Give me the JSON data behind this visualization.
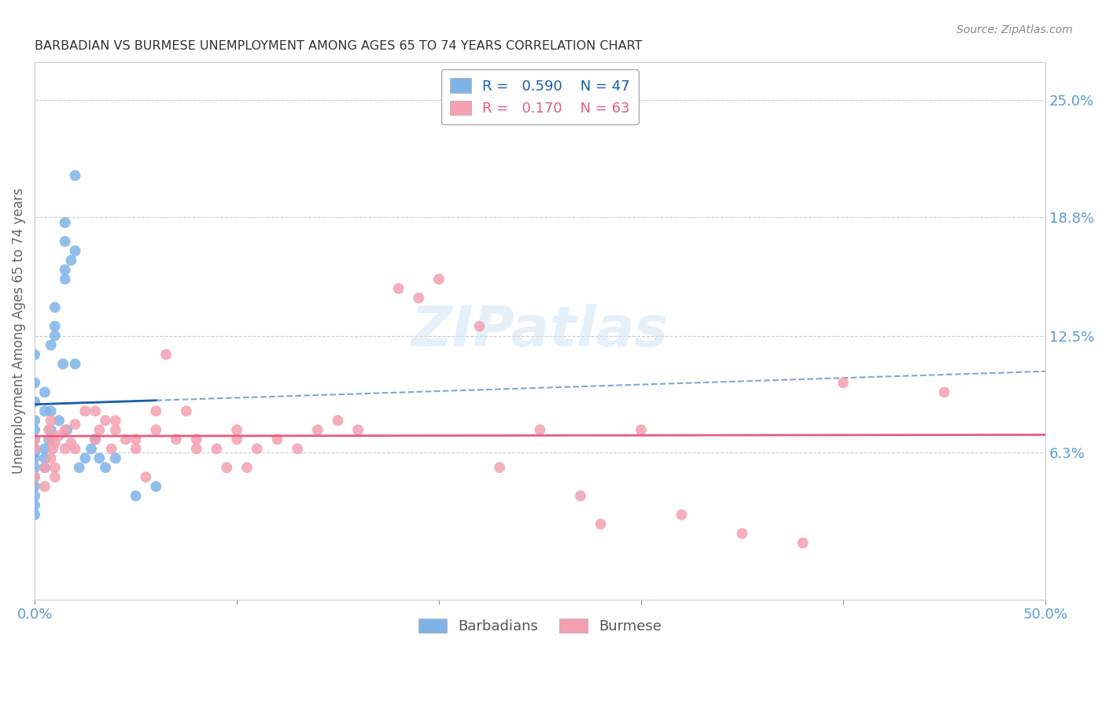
{
  "title": "BARBADIAN VS BURMESE UNEMPLOYMENT AMONG AGES 65 TO 74 YEARS CORRELATION CHART",
  "source": "Source: ZipAtlas.com",
  "ylabel": "Unemployment Among Ages 65 to 74 years",
  "xlim": [
    0.0,
    50.0
  ],
  "ylim": [
    -1.5,
    27.0
  ],
  "y_tick_labels_right": [
    "6.3%",
    "12.5%",
    "18.8%",
    "25.0%"
  ],
  "y_tick_vals_right": [
    6.3,
    12.5,
    18.8,
    25.0
  ],
  "background_color": "#ffffff",
  "grid_color": "#cccccc",
  "title_color": "#333333",
  "label_color": "#5b9bd5",
  "barbadian_color": "#7fb3e8",
  "burmese_color": "#f4a0b0",
  "barbadian_line_color": "#1a5fa8",
  "burmese_line_color": "#e85d7a",
  "R_barbadian": 0.59,
  "N_barbadian": 47,
  "R_burmese": 0.17,
  "N_burmese": 63,
  "barbadian_x": [
    0.0,
    0.0,
    0.0,
    0.0,
    0.0,
    0.0,
    0.0,
    0.0,
    0.0,
    0.0,
    0.0,
    0.0,
    0.0,
    0.0,
    0.0,
    0.5,
    0.5,
    0.5,
    0.5,
    0.5,
    0.7,
    0.8,
    0.8,
    0.8,
    1.0,
    1.0,
    1.0,
    1.2,
    1.4,
    1.5,
    1.5,
    1.5,
    1.5,
    1.6,
    1.8,
    2.0,
    2.0,
    2.0,
    2.2,
    2.5,
    2.8,
    3.0,
    3.2,
    3.5,
    4.0,
    5.0,
    6.0
  ],
  "barbadian_y": [
    3.0,
    3.5,
    4.0,
    4.5,
    5.0,
    5.5,
    6.0,
    6.3,
    6.5,
    7.0,
    7.5,
    8.0,
    9.0,
    10.0,
    11.5,
    5.5,
    6.0,
    6.5,
    8.5,
    9.5,
    7.0,
    7.5,
    8.5,
    12.0,
    12.5,
    13.0,
    14.0,
    8.0,
    11.0,
    15.5,
    16.0,
    17.5,
    18.5,
    7.5,
    16.5,
    11.0,
    17.0,
    21.0,
    5.5,
    6.0,
    6.5,
    7.0,
    6.0,
    5.5,
    6.0,
    4.0,
    4.5
  ],
  "burmese_x": [
    0.0,
    0.0,
    0.0,
    0.5,
    0.5,
    0.7,
    0.8,
    0.8,
    0.8,
    0.9,
    1.0,
    1.0,
    1.0,
    1.2,
    1.5,
    1.5,
    1.8,
    2.0,
    2.0,
    2.5,
    3.0,
    3.0,
    3.2,
    3.5,
    3.8,
    4.0,
    4.0,
    4.5,
    5.0,
    5.0,
    5.5,
    6.0,
    6.0,
    6.5,
    7.0,
    7.5,
    8.0,
    8.0,
    9.0,
    9.5,
    10.0,
    10.0,
    10.5,
    11.0,
    12.0,
    13.0,
    14.0,
    15.0,
    16.0,
    18.0,
    19.0,
    20.0,
    22.0,
    23.0,
    25.0,
    27.0,
    28.0,
    30.0,
    32.0,
    35.0,
    38.0,
    40.0,
    45.0
  ],
  "burmese_y": [
    5.0,
    6.5,
    7.0,
    4.5,
    5.5,
    7.5,
    6.0,
    7.0,
    8.0,
    6.5,
    5.0,
    5.5,
    6.8,
    7.2,
    6.5,
    7.5,
    6.8,
    6.5,
    7.8,
    8.5,
    7.0,
    8.5,
    7.5,
    8.0,
    6.5,
    7.5,
    8.0,
    7.0,
    6.5,
    7.0,
    5.0,
    7.5,
    8.5,
    11.5,
    7.0,
    8.5,
    6.5,
    7.0,
    6.5,
    5.5,
    7.0,
    7.5,
    5.5,
    6.5,
    7.0,
    6.5,
    7.5,
    8.0,
    7.5,
    15.0,
    14.5,
    15.5,
    13.0,
    5.5,
    7.5,
    4.0,
    2.5,
    7.5,
    3.0,
    2.0,
    1.5,
    10.0,
    9.5
  ]
}
